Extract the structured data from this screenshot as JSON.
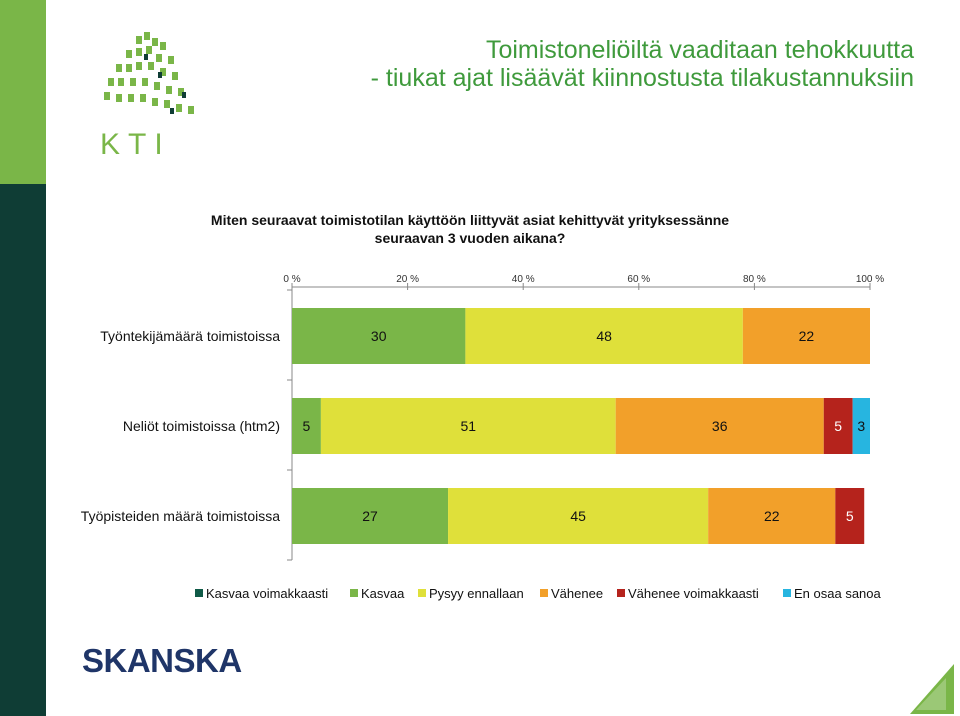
{
  "slide": {
    "title_line1": "Toimistoneliöiltä vaaditaan tehokkuutta",
    "title_line2": "- tiukat ajat lisäävät kiinnostusta tilakustannuksiin",
    "kti_logo_text": "KTI",
    "skanska_logo_text": "SKANSKA",
    "colors": {
      "accent_green": "#3f9a3c",
      "stripe_green": "#7ab648",
      "stripe_dark": "#0f3d35"
    }
  },
  "chart_data": {
    "type": "bar",
    "orientation": "horizontal",
    "stacked": true,
    "title_line1": "Miten seuraavat toimistotilan käyttöön liittyvät asiat kehittyvät yrityksessänne",
    "title_line2": "seuraavan 3 vuoden aikana?",
    "xlim": [
      0,
      100
    ],
    "x_ticks": [
      "0 %",
      "20 %",
      "40 %",
      "60 %",
      "80 %",
      "100 %"
    ],
    "x_tick_values": [
      0,
      20,
      40,
      60,
      80,
      100
    ],
    "x_axis_position": "top",
    "categories": [
      "Työntekijämäärä toimistoissa",
      "Neliöt toimistoissa (htm2)",
      "Työpisteiden määrä toimistoissa"
    ],
    "series": [
      {
        "name": "Kasvaa voimakkaasti",
        "color": "#0f5a47",
        "values": [
          0,
          0,
          0
        ]
      },
      {
        "name": "Kasvaa",
        "color": "#7ab648",
        "values": [
          30,
          5,
          27
        ]
      },
      {
        "name": "Pysyy ennallaan",
        "color": "#dfe03a",
        "values": [
          48,
          51,
          45
        ]
      },
      {
        "name": "Vähenee",
        "color": "#f2a02a",
        "values": [
          22,
          36,
          22
        ]
      },
      {
        "name": "Vähenee voimakkaasti",
        "color": "#b5231c",
        "values": [
          0,
          5,
          5
        ]
      },
      {
        "name": "En osaa sanoa",
        "color": "#27b5e0",
        "values": [
          0,
          3,
          0
        ]
      }
    ],
    "legend_position": "bottom",
    "grid": false
  }
}
